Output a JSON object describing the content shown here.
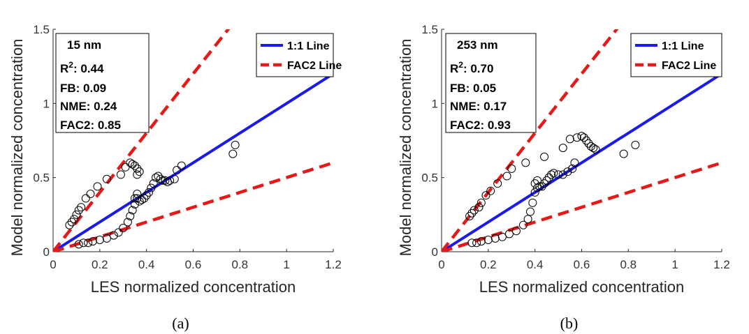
{
  "colors": {
    "one_to_one": "#1a1aeb",
    "fac2": "#e61919",
    "marker_stroke": "#000000",
    "axis": "#262626"
  },
  "chart_data": [
    {
      "type": "scatter",
      "panel_label": "(a)",
      "xlabel": "LES normalized concentration",
      "ylabel": "Model normalized concentration",
      "xlim": [
        0,
        1.2
      ],
      "ylim": [
        0,
        1.5
      ],
      "xticks": [
        "0",
        "0.2",
        "0.4",
        "0.6",
        "0.8",
        "1",
        "1.2"
      ],
      "yticks": [
        "0",
        "0.5",
        "1",
        "1.5"
      ],
      "grid": false,
      "stats": {
        "title": "15 nm",
        "r2_label": "R",
        "r2_sup": "2",
        "r2_value": ": 0.44",
        "fb": "FB: 0.09",
        "nme": "NME: 0.24",
        "fac2": "FAC2: 0.85"
      },
      "legend": {
        "placement": "top-right",
        "items": [
          "1:1 Line",
          "FAC2 Line"
        ]
      },
      "lines": [
        {
          "name": "1:1 Line",
          "slope": 1.0,
          "style": "solid"
        },
        {
          "name": "FAC2 Line",
          "slope": 2.0,
          "style": "dashed"
        },
        {
          "name": "FAC2 Line",
          "slope": 0.5,
          "style": "dashed"
        }
      ],
      "points": [
        [
          0.07,
          0.18
        ],
        [
          0.08,
          0.2
        ],
        [
          0.09,
          0.22
        ],
        [
          0.1,
          0.25
        ],
        [
          0.11,
          0.28
        ],
        [
          0.12,
          0.3
        ],
        [
          0.14,
          0.36
        ],
        [
          0.16,
          0.39
        ],
        [
          0.19,
          0.44
        ],
        [
          0.23,
          0.49
        ],
        [
          0.29,
          0.52
        ],
        [
          0.31,
          0.57
        ],
        [
          0.33,
          0.6
        ],
        [
          0.34,
          0.59
        ],
        [
          0.35,
          0.58
        ],
        [
          0.36,
          0.56
        ],
        [
          0.37,
          0.54
        ],
        [
          0.36,
          0.52
        ],
        [
          0.11,
          0.05
        ],
        [
          0.13,
          0.06
        ],
        [
          0.15,
          0.06
        ],
        [
          0.17,
          0.07
        ],
        [
          0.2,
          0.08
        ],
        [
          0.23,
          0.09
        ],
        [
          0.26,
          0.11
        ],
        [
          0.28,
          0.13
        ],
        [
          0.3,
          0.16
        ],
        [
          0.32,
          0.2
        ],
        [
          0.33,
          0.24
        ],
        [
          0.34,
          0.28
        ],
        [
          0.35,
          0.32
        ],
        [
          0.35,
          0.36
        ],
        [
          0.36,
          0.39
        ],
        [
          0.36,
          0.36
        ],
        [
          0.37,
          0.34
        ],
        [
          0.38,
          0.35
        ],
        [
          0.39,
          0.36
        ],
        [
          0.4,
          0.38
        ],
        [
          0.41,
          0.4
        ],
        [
          0.42,
          0.43
        ],
        [
          0.43,
          0.46
        ],
        [
          0.44,
          0.5
        ],
        [
          0.45,
          0.51
        ],
        [
          0.46,
          0.49
        ],
        [
          0.47,
          0.48
        ],
        [
          0.48,
          0.48
        ],
        [
          0.49,
          0.47
        ],
        [
          0.5,
          0.48
        ],
        [
          0.52,
          0.49
        ],
        [
          0.53,
          0.55
        ],
        [
          0.55,
          0.58
        ],
        [
          0.77,
          0.66
        ],
        [
          0.78,
          0.72
        ]
      ]
    },
    {
      "type": "scatter",
      "panel_label": "(b)",
      "xlabel": "LES normalized concentration",
      "ylabel": "Model normalized concentration",
      "xlim": [
        0,
        1.2
      ],
      "ylim": [
        0,
        1.5
      ],
      "xticks": [
        "0",
        "0.2",
        "0.4",
        "0.6",
        "0.8",
        "1",
        "1.2"
      ],
      "yticks": [
        "0",
        "0.5",
        "1",
        "1.5"
      ],
      "grid": false,
      "stats": {
        "title": "253 nm",
        "r2_label": "R",
        "r2_sup": "2",
        "r2_value": ": 0.70",
        "fb": "FB: 0.05",
        "nme": "NME: 0.17",
        "fac2": "FAC2: 0.93"
      },
      "legend": {
        "placement": "top-right",
        "items": [
          "1:1 Line",
          "FAC2 Line"
        ]
      },
      "lines": [
        {
          "name": "1:1 Line",
          "slope": 1.0,
          "style": "solid"
        },
        {
          "name": "FAC2 Line",
          "slope": 2.0,
          "style": "dashed"
        },
        {
          "name": "FAC2 Line",
          "slope": 0.5,
          "style": "dashed"
        }
      ],
      "points": [
        [
          0.12,
          0.24
        ],
        [
          0.13,
          0.26
        ],
        [
          0.14,
          0.28
        ],
        [
          0.16,
          0.3
        ],
        [
          0.17,
          0.33
        ],
        [
          0.19,
          0.38
        ],
        [
          0.21,
          0.41
        ],
        [
          0.24,
          0.46
        ],
        [
          0.28,
          0.51
        ],
        [
          0.3,
          0.56
        ],
        [
          0.36,
          0.6
        ],
        [
          0.44,
          0.64
        ],
        [
          0.52,
          0.7
        ],
        [
          0.55,
          0.76
        ],
        [
          0.58,
          0.77
        ],
        [
          0.6,
          0.78
        ],
        [
          0.61,
          0.77
        ],
        [
          0.62,
          0.75
        ],
        [
          0.63,
          0.73
        ],
        [
          0.64,
          0.71
        ],
        [
          0.65,
          0.7
        ],
        [
          0.66,
          0.69
        ],
        [
          0.13,
          0.06
        ],
        [
          0.15,
          0.06
        ],
        [
          0.17,
          0.07
        ],
        [
          0.2,
          0.08
        ],
        [
          0.23,
          0.09
        ],
        [
          0.26,
          0.1
        ],
        [
          0.29,
          0.12
        ],
        [
          0.32,
          0.14
        ],
        [
          0.35,
          0.18
        ],
        [
          0.37,
          0.22
        ],
        [
          0.38,
          0.27
        ],
        [
          0.39,
          0.33
        ],
        [
          0.4,
          0.4
        ],
        [
          0.41,
          0.43
        ],
        [
          0.42,
          0.44
        ],
        [
          0.43,
          0.44
        ],
        [
          0.44,
          0.46
        ],
        [
          0.45,
          0.48
        ],
        [
          0.46,
          0.5
        ],
        [
          0.47,
          0.52
        ],
        [
          0.48,
          0.53
        ],
        [
          0.5,
          0.52
        ],
        [
          0.52,
          0.52
        ],
        [
          0.54,
          0.54
        ],
        [
          0.56,
          0.56
        ],
        [
          0.57,
          0.6
        ],
        [
          0.4,
          0.46
        ],
        [
          0.41,
          0.48
        ],
        [
          0.78,
          0.66
        ],
        [
          0.83,
          0.72
        ]
      ]
    }
  ]
}
